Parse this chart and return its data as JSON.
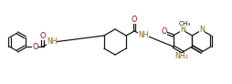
{
  "bg_color": "#ffffff",
  "bond_color": "#1a1a1a",
  "N_color": "#8B6914",
  "O_color": "#8B0000",
  "lw": 0.9,
  "figsize": [
    2.55,
    0.92
  ],
  "dpi": 100,
  "xlim": [
    0,
    255
  ],
  "ylim": [
    0,
    92
  ]
}
